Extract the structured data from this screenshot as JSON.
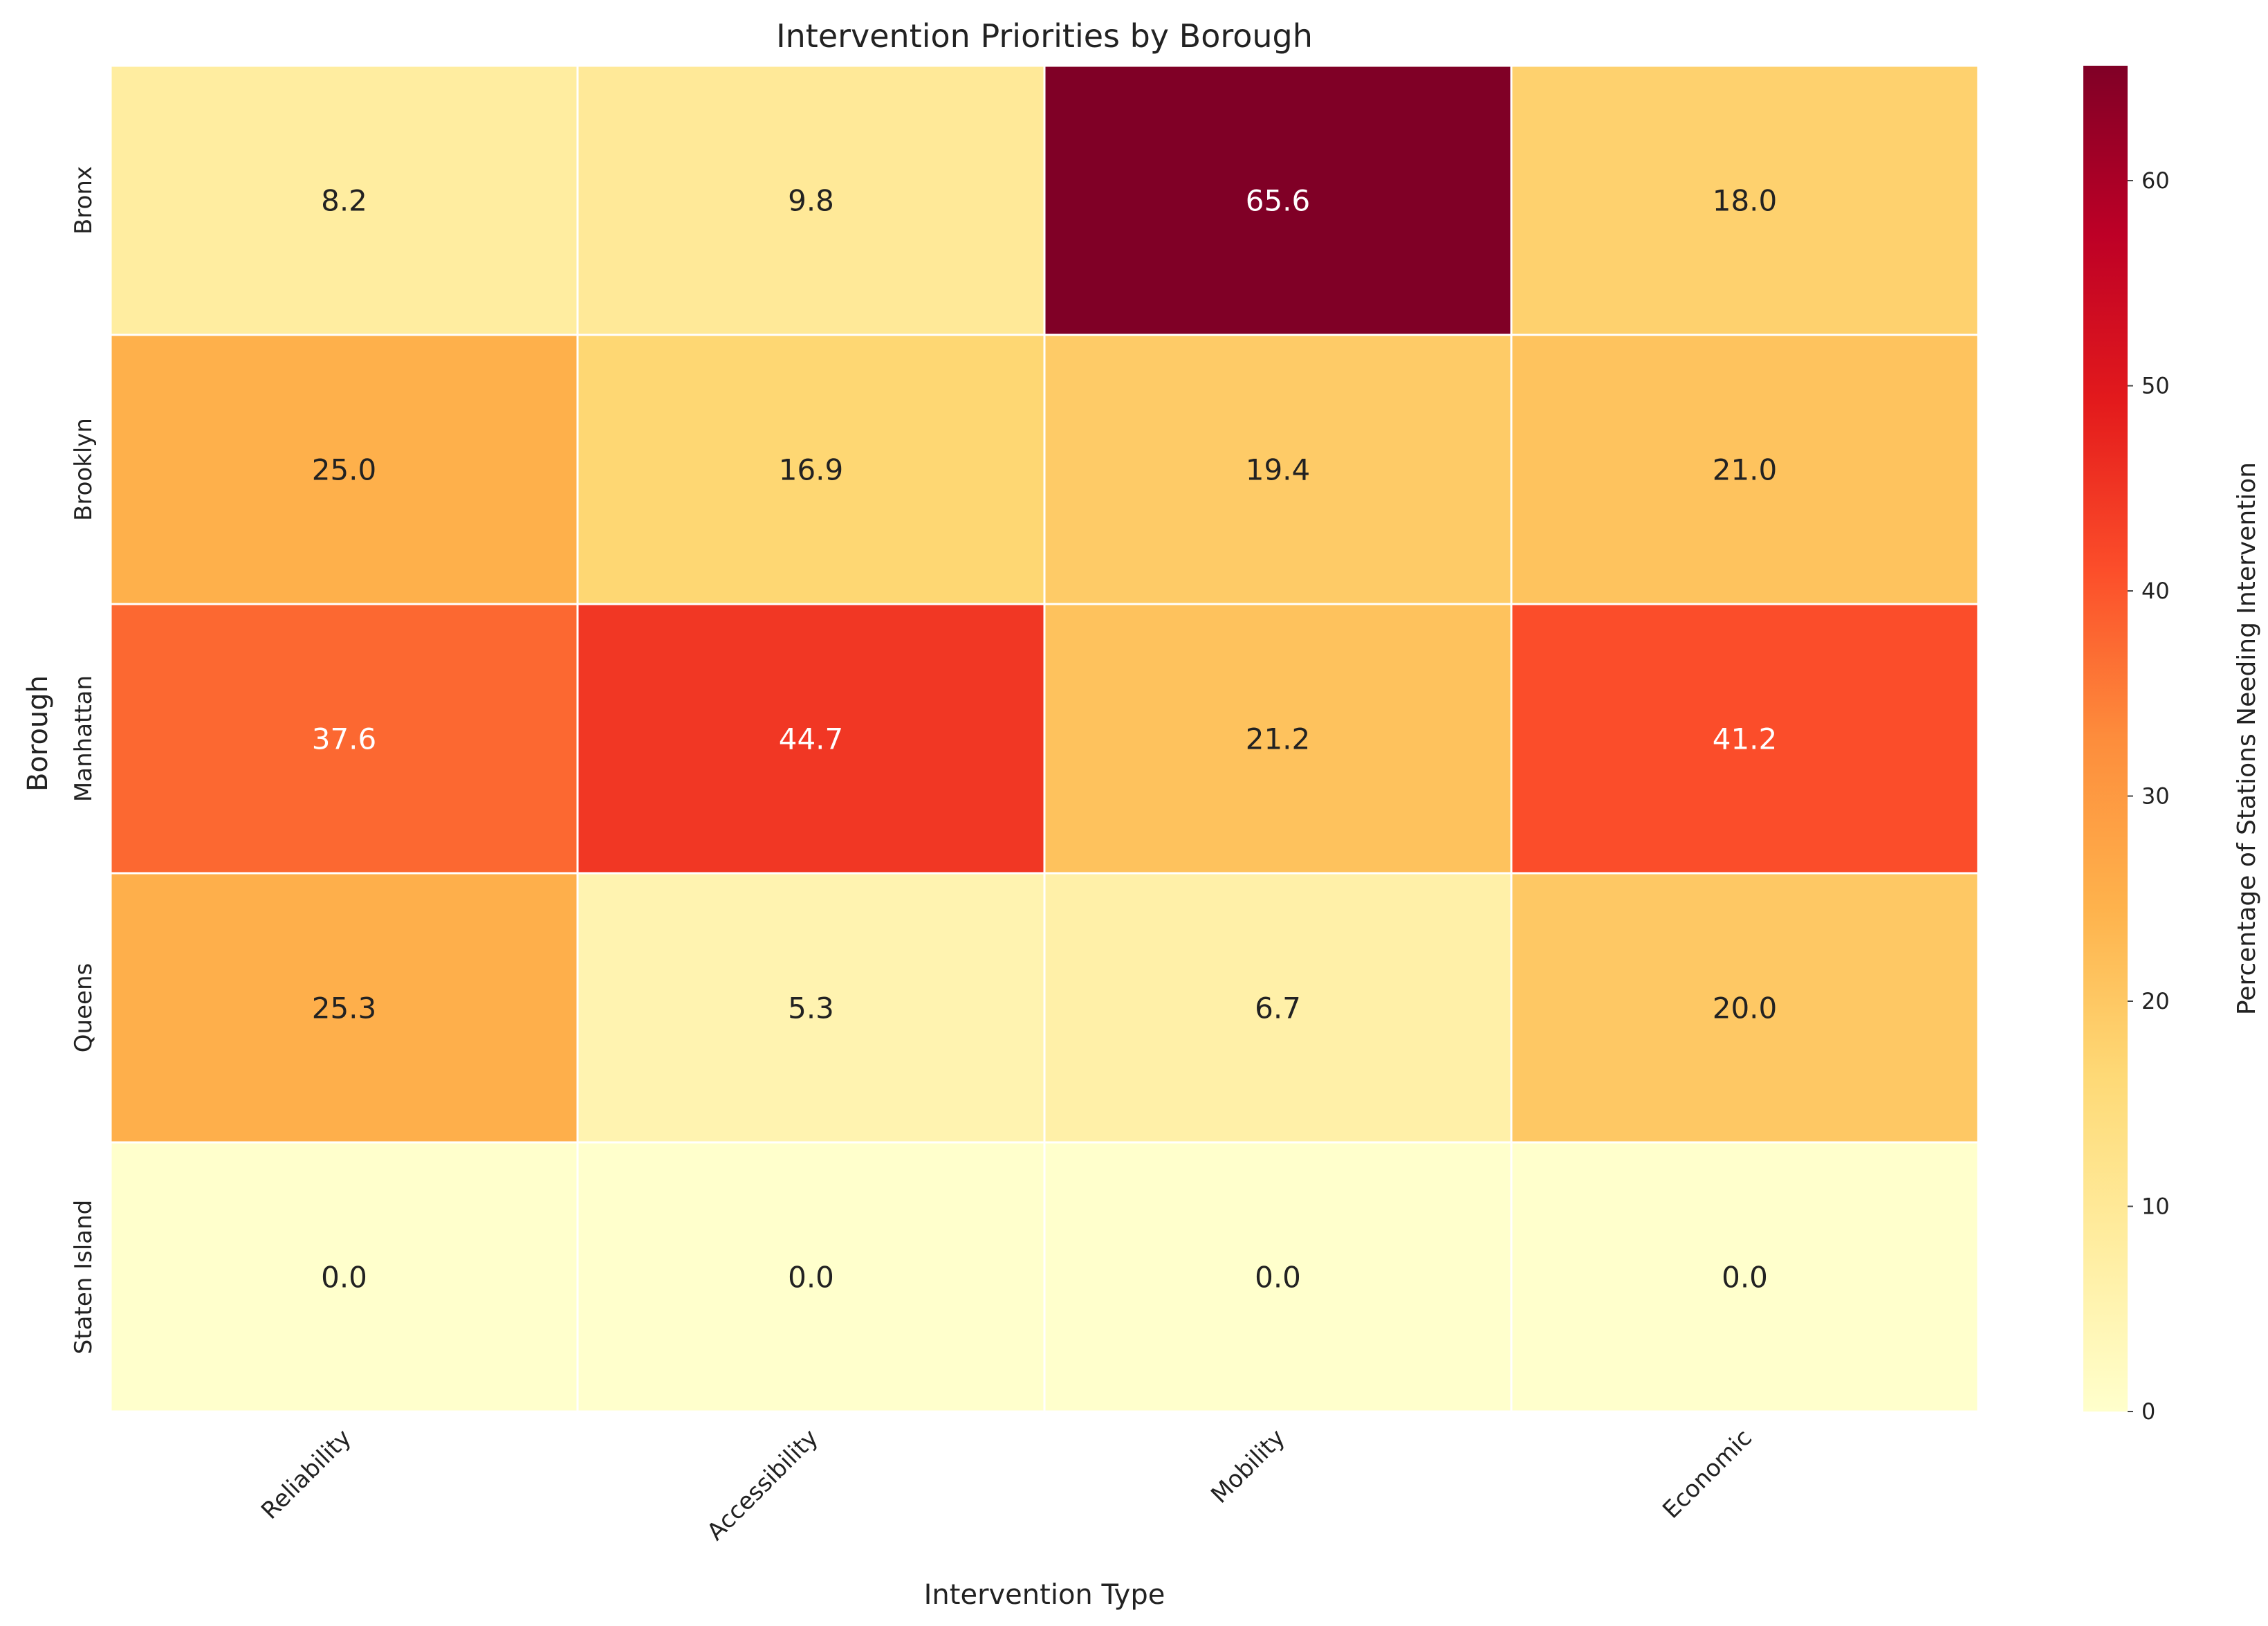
{
  "chart_data": {
    "type": "heatmap",
    "title": "Intervention Priorities by Borough",
    "xlabel": "Intervention Type",
    "ylabel": "Borough",
    "x_categories": [
      "Reliability",
      "Accessibility",
      "Mobility",
      "Economic"
    ],
    "y_categories": [
      "Bronx",
      "Brooklyn",
      "Manhattan",
      "Queens",
      "Staten Island"
    ],
    "values": [
      [
        8.2,
        9.8,
        65.6,
        18.0
      ],
      [
        25.0,
        16.9,
        19.4,
        21.0
      ],
      [
        37.6,
        44.7,
        21.2,
        41.2
      ],
      [
        25.3,
        5.3,
        6.7,
        20.0
      ],
      [
        0.0,
        0.0,
        0.0,
        0.0
      ]
    ],
    "colormap": "YlOrRd",
    "colorbar": {
      "label": "Percentage of Stations Needing Intervention",
      "range": [
        0,
        65.6
      ],
      "ticks": [
        0,
        10,
        20,
        30,
        40,
        50,
        60
      ]
    },
    "annotations": true
  }
}
